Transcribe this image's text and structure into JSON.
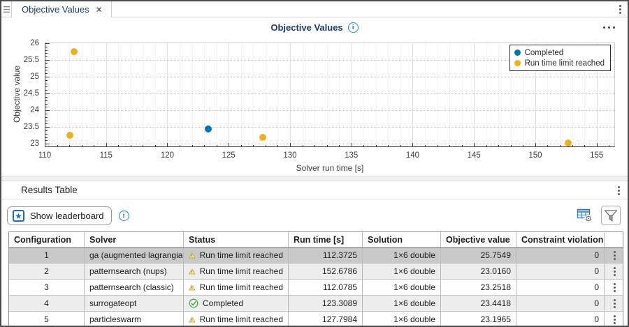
{
  "window": {
    "tab_label": "Objective Values",
    "icons": {
      "close": "✕",
      "star": "★",
      "info": "i"
    }
  },
  "chart_data": {
    "type": "scatter",
    "title": "Objective Values",
    "xlabel": "Solver run time [s]",
    "ylabel": "Objective value",
    "xlim": [
      110,
      156.5
    ],
    "ylim": [
      22.9,
      26.02
    ],
    "xticks": [
      110,
      115,
      120,
      125,
      130,
      135,
      140,
      145,
      150,
      155
    ],
    "yticks": [
      23,
      23.5,
      24,
      24.5,
      25,
      25.5,
      26
    ],
    "x_minor_step": 1,
    "y_minor_step": 0.1,
    "grid": true,
    "legend_position": "top-right",
    "series": [
      {
        "name": "Completed",
        "color": "#0072BD",
        "points": [
          {
            "x": 123.3089,
            "y": 23.4418
          }
        ]
      },
      {
        "name": "Run time limit reached",
        "color": "#EDB120",
        "points": [
          {
            "x": 112.3725,
            "y": 25.7549
          },
          {
            "x": 152.6786,
            "y": 23.016
          },
          {
            "x": 112.0785,
            "y": 23.2518
          },
          {
            "x": 127.7984,
            "y": 23.1965
          }
        ]
      }
    ]
  },
  "results": {
    "section_title": "Results Table",
    "show_leaderboard_label": "Show leaderboard",
    "table": {
      "columns": [
        {
          "key": "configuration",
          "label": "Configuration",
          "align": "center",
          "width": 108
        },
        {
          "key": "solver",
          "label": "Solver",
          "align": "left",
          "width": 142
        },
        {
          "key": "status",
          "label": "Status",
          "align": "left",
          "width": 150
        },
        {
          "key": "run_time",
          "label": "Run time [s]",
          "align": "right",
          "width": 106
        },
        {
          "key": "solution",
          "label": "Solution",
          "align": "right",
          "width": 112
        },
        {
          "key": "objective",
          "label": "Objective value",
          "align": "right",
          "width": 108
        },
        {
          "key": "constraint",
          "label": "Constraint violation",
          "align": "right",
          "width": 126
        },
        {
          "key": "menu",
          "label": "",
          "align": "center",
          "width": 28
        }
      ],
      "rows": [
        {
          "configuration": "1",
          "solver": "ga (augmented lagrangian)",
          "status": "Run time limit reached",
          "status_icon": "warning",
          "run_time": "112.3725",
          "solution": "1×6 double",
          "objective": "25.7549",
          "constraint": "0",
          "selected": true
        },
        {
          "configuration": "2",
          "solver": "patternsearch (nups)",
          "status": "Run time limit reached",
          "status_icon": "warning",
          "run_time": "152.6786",
          "solution": "1×6 double",
          "objective": "23.0160",
          "constraint": "0",
          "selected": false
        },
        {
          "configuration": "3",
          "solver": "patternsearch (classic)",
          "status": "Run time limit reached",
          "status_icon": "warning",
          "run_time": "112.0785",
          "solution": "1×6 double",
          "objective": "23.2518",
          "constraint": "0",
          "selected": false
        },
        {
          "configuration": "4",
          "solver": "surrogateopt",
          "status": "Completed",
          "status_icon": "success",
          "run_time": "123.3089",
          "solution": "1×6 double",
          "objective": "23.4418",
          "constraint": "0",
          "selected": false
        },
        {
          "configuration": "5",
          "solver": "particleswarm",
          "status": "Run time limit reached",
          "status_icon": "warning",
          "run_time": "127.7984",
          "solution": "1×6 double",
          "objective": "23.1965",
          "constraint": "0",
          "selected": false
        }
      ]
    }
  },
  "colors": {
    "accent_blue": "#0072BD",
    "accent_yellow": "#EDB120",
    "title_navy": "#17406b"
  }
}
